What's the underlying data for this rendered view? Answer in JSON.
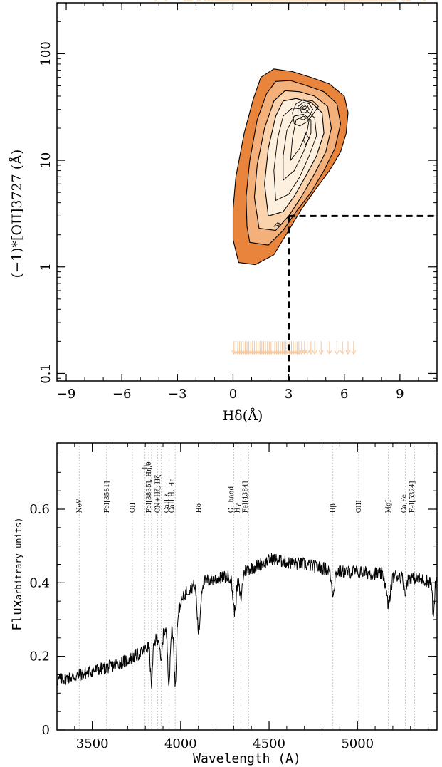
{
  "chart_data": [
    {
      "type": "scatter",
      "title": "",
      "xlabel": "Hδ(Å)",
      "ylabel": "(−1)*[OII]3727 (Å)",
      "xlim": [
        -9.5,
        11
      ],
      "ylim": [
        0.085,
        300
      ],
      "yscale": "log",
      "x_ticks": [
        {
          "value": -9,
          "label": "−9"
        },
        {
          "value": -6,
          "label": "−6"
        },
        {
          "value": -3,
          "label": "−3"
        },
        {
          "value": 0,
          "label": "0"
        },
        {
          "value": 3,
          "label": "3"
        },
        {
          "value": 6,
          "label": "6"
        },
        {
          "value": 9,
          "label": "9"
        }
      ],
      "y_ticks": [
        {
          "value": 0.1,
          "label": "0.1"
        },
        {
          "value": 1,
          "label": "1"
        },
        {
          "value": 10,
          "label": "10"
        },
        {
          "value": 100,
          "label": "100"
        }
      ],
      "colors": {
        "points": "#fde3c4",
        "arrows": "#f6c69a",
        "outer": "#e8843c",
        "mid": "#f4b07a",
        "inner": "#fad3ac",
        "core": "#fef0de",
        "line": "#000000"
      },
      "scatter_center": {
        "x": 3.7,
        "y_log10": 1.05,
        "sx": 2.1,
        "sy": 0.42
      },
      "scatter_count": 1150,
      "contour_levels": [
        {
          "fill": "#e8843c",
          "points": [
            [
              0.3,
              1.1
            ],
            [
              1.2,
              1.05
            ],
            [
              2.2,
              1.3
            ],
            [
              3.0,
              2.2
            ],
            [
              3.7,
              3.5
            ],
            [
              4.5,
              5.5
            ],
            [
              5.2,
              8
            ],
            [
              5.8,
              12
            ],
            [
              6.1,
              18
            ],
            [
              6.2,
              28
            ],
            [
              6.0,
              40
            ],
            [
              5.2,
              52
            ],
            [
              4.2,
              60
            ],
            [
              3.2,
              68
            ],
            [
              2.2,
              72
            ],
            [
              1.5,
              60
            ],
            [
              1.1,
              38
            ],
            [
              0.6,
              18
            ],
            [
              0.15,
              7
            ],
            [
              0.0,
              3.5
            ],
            [
              0.0,
              1.8
            ]
          ]
        },
        {
          "fill": "#f4b07a",
          "points": [
            [
              0.9,
              1.7
            ],
            [
              1.9,
              1.6
            ],
            [
              2.7,
              2.2
            ],
            [
              3.4,
              3.3
            ],
            [
              4.2,
              5
            ],
            [
              4.9,
              8
            ],
            [
              5.5,
              13
            ],
            [
              5.8,
              22
            ],
            [
              5.6,
              34
            ],
            [
              4.9,
              44
            ],
            [
              4.0,
              50
            ],
            [
              3.1,
              56
            ],
            [
              2.3,
              55
            ],
            [
              1.8,
              42
            ],
            [
              1.3,
              24
            ],
            [
              0.9,
              10
            ],
            [
              0.7,
              4.5
            ],
            [
              0.75,
              2.4
            ]
          ]
        },
        {
          "fill": "#fad3ac",
          "points": [
            [
              1.4,
              2.3
            ],
            [
              2.3,
              2.2
            ],
            [
              3.0,
              3.0
            ],
            [
              3.7,
              4.6
            ],
            [
              4.4,
              7.5
            ],
            [
              5.0,
              12
            ],
            [
              5.3,
              20
            ],
            [
              5.1,
              32
            ],
            [
              4.4,
              40
            ],
            [
              3.6,
              44
            ],
            [
              2.8,
              45
            ],
            [
              2.2,
              36
            ],
            [
              1.7,
              20
            ],
            [
              1.3,
              9
            ],
            [
              1.15,
              4.5
            ]
          ]
        },
        {
          "fill": "#fef0de",
          "points": [
            [
              1.9,
              3.0
            ],
            [
              2.7,
              3.3
            ],
            [
              3.3,
              4.6
            ],
            [
              3.9,
              7
            ],
            [
              4.5,
              11
            ],
            [
              4.9,
              18
            ],
            [
              4.8,
              28
            ],
            [
              4.2,
              35
            ],
            [
              3.4,
              38
            ],
            [
              2.7,
              36
            ],
            [
              2.3,
              26
            ],
            [
              1.9,
              13
            ],
            [
              1.7,
              6
            ]
          ]
        }
      ],
      "contour_lines": [
        [
          [
            2.3,
            4.2
          ],
          [
            3.0,
            4.8
          ],
          [
            3.6,
            7
          ],
          [
            4.1,
            11
          ],
          [
            4.5,
            17
          ],
          [
            4.4,
            25
          ],
          [
            3.9,
            30
          ],
          [
            3.2,
            31
          ],
          [
            2.7,
            26
          ],
          [
            2.4,
            16
          ],
          [
            2.2,
            8
          ]
        ],
        [
          [
            2.7,
            6.5
          ],
          [
            3.3,
            8
          ],
          [
            3.8,
            12
          ],
          [
            4.2,
            18
          ],
          [
            4.2,
            24
          ],
          [
            3.8,
            27
          ],
          [
            3.3,
            26
          ],
          [
            2.9,
            19
          ],
          [
            2.7,
            11
          ]
        ],
        [
          [
            3.1,
            10
          ],
          [
            3.6,
            13
          ],
          [
            4.0,
            19
          ],
          [
            4.1,
            24
          ],
          [
            3.8,
            26
          ],
          [
            3.4,
            24
          ],
          [
            3.2,
            16
          ]
        ],
        [
          [
            3.3,
            22
          ],
          [
            3.6,
            21
          ],
          [
            4.0,
            23
          ],
          [
            4.3,
            27
          ],
          [
            4.6,
            32
          ],
          [
            4.3,
            36
          ],
          [
            3.8,
            37
          ],
          [
            3.4,
            34
          ],
          [
            3.2,
            28
          ]
        ],
        [
          [
            3.5,
            25
          ],
          [
            3.8,
            24
          ],
          [
            4.1,
            26
          ],
          [
            4.3,
            30
          ],
          [
            4.1,
            34
          ],
          [
            3.8,
            35
          ],
          [
            3.5,
            32
          ]
        ],
        [
          [
            3.7,
            28
          ],
          [
            3.9,
            28
          ],
          [
            4.1,
            30
          ],
          [
            4.0,
            33
          ],
          [
            3.8,
            33
          ],
          [
            3.6,
            31
          ]
        ],
        [
          [
            3.8,
            30
          ],
          [
            4.0,
            31
          ],
          [
            3.9,
            32.5
          ],
          [
            3.75,
            31.5
          ]
        ],
        [
          [
            2.2,
            2.4
          ],
          [
            2.6,
            2.5
          ],
          [
            2.4,
            2.6
          ]
        ],
        [
          [
            3.9,
            14
          ],
          [
            4.1,
            16
          ],
          [
            3.9,
            18
          ],
          [
            3.8,
            15.5
          ]
        ]
      ],
      "threshold_lines": {
        "x_value": 3,
        "y_value": 3,
        "style": "dashed"
      },
      "upper_limit_arrows": {
        "y": 0.175,
        "x": [
          0.05,
          0.15,
          0.25,
          0.35,
          0.45,
          0.55,
          0.65,
          0.75,
          0.85,
          0.95,
          1.05,
          1.15,
          1.25,
          1.35,
          1.45,
          1.55,
          1.65,
          1.75,
          1.85,
          1.95,
          2.05,
          2.15,
          2.25,
          2.35,
          2.45,
          2.55,
          2.65,
          2.75,
          2.85,
          2.95,
          3.05,
          3.15,
          3.25,
          3.35,
          3.45,
          3.55,
          3.7,
          3.85,
          4.0,
          4.2,
          4.4,
          4.75,
          5.2,
          5.6,
          5.9,
          6.2,
          6.5
        ]
      }
    },
    {
      "type": "line",
      "title": "",
      "xlabel": "Wavelength (A)",
      "ylabel": "Flux",
      "ylabel_small": "(arbitrary units)",
      "xlim": [
        3300,
        5450
      ],
      "ylim": [
        0,
        0.78
      ],
      "x_ticks": [
        {
          "value": 3500,
          "label": "3500"
        },
        {
          "value": 4000,
          "label": "4000"
        },
        {
          "value": 4500,
          "label": "4500"
        },
        {
          "value": 5000,
          "label": "5000"
        }
      ],
      "y_ticks": [
        {
          "value": 0,
          "label": "0"
        },
        {
          "value": 0.2,
          "label": "0.2"
        },
        {
          "value": 0.4,
          "label": "0.4"
        },
        {
          "value": 0.6,
          "label": "0.6"
        }
      ],
      "continuum": [
        [
          3300,
          0.135
        ],
        [
          3400,
          0.145
        ],
        [
          3500,
          0.16
        ],
        [
          3600,
          0.172
        ],
        [
          3700,
          0.19
        ],
        [
          3780,
          0.21
        ],
        [
          3850,
          0.24
        ],
        [
          3900,
          0.265
        ],
        [
          3950,
          0.29
        ],
        [
          3990,
          0.33
        ],
        [
          4030,
          0.375
        ],
        [
          4080,
          0.395
        ],
        [
          4150,
          0.405
        ],
        [
          4250,
          0.415
        ],
        [
          4350,
          0.43
        ],
        [
          4450,
          0.45
        ],
        [
          4520,
          0.465
        ],
        [
          4600,
          0.455
        ],
        [
          4700,
          0.45
        ],
        [
          4800,
          0.44
        ],
        [
          4900,
          0.43
        ],
        [
          5000,
          0.43
        ],
        [
          5100,
          0.425
        ],
        [
          5200,
          0.42
        ],
        [
          5300,
          0.415
        ],
        [
          5400,
          0.405
        ],
        [
          5450,
          0.4
        ]
      ],
      "absorption_features": [
        {
          "center": 3835,
          "depth": 0.11,
          "width": 6
        },
        {
          "center": 3889,
          "depth": 0.08,
          "width": 6
        },
        {
          "center": 3934,
          "depth": 0.15,
          "width": 7
        },
        {
          "center": 3969,
          "depth": 0.18,
          "width": 7
        },
        {
          "center": 4102,
          "depth": 0.13,
          "width": 9
        },
        {
          "center": 4305,
          "depth": 0.1,
          "width": 10
        },
        {
          "center": 4340,
          "depth": 0.07,
          "width": 8
        },
        {
          "center": 4861,
          "depth": 0.06,
          "width": 9
        },
        {
          "center": 5175,
          "depth": 0.08,
          "width": 12
        },
        {
          "center": 5270,
          "depth": 0.04,
          "width": 8
        },
        {
          "center": 5430,
          "depth": 0.1,
          "width": 5
        }
      ],
      "noise_amplitude": 0.018,
      "sample_step": 2,
      "line_marker_wavelengths": [
        3426,
        3581,
        3727,
        3798,
        3820,
        3835,
        3870,
        3889,
        3934,
        3969,
        4102,
        4300,
        4340,
        4384,
        4861,
        5007,
        5175,
        5270,
        5324
      ],
      "line_labels": [
        {
          "wave": 3426,
          "label": "NeV",
          "y": 0.59
        },
        {
          "wave": 3581,
          "label": "FeI[3581]",
          "y": 0.59
        },
        {
          "wave": 3727,
          "label": "OII",
          "y": 0.59
        },
        {
          "wave": 3798,
          "label": "Hι",
          "y": 0.7
        },
        {
          "wave": 3820,
          "label": "FeI[3835], Hη,θ",
          "y": 0.59
        },
        {
          "wave": 3870,
          "label": "CN+Hζ, Hζ",
          "y": 0.59
        },
        {
          "wave": 3920,
          "label": "CaII K",
          "y": 0.59
        },
        {
          "wave": 3950,
          "label": "CaII H, Hε",
          "y": 0.59
        },
        {
          "wave": 4102,
          "label": "Hδ",
          "y": 0.59
        },
        {
          "wave": 4285,
          "label": "G−band",
          "y": 0.59
        },
        {
          "wave": 4320,
          "label": "Hγ",
          "y": 0.59
        },
        {
          "wave": 4365,
          "label": "FeI[4384]",
          "y": 0.59
        },
        {
          "wave": 4861,
          "label": "Hβ",
          "y": 0.59
        },
        {
          "wave": 5007,
          "label": "OIII",
          "y": 0.59
        },
        {
          "wave": 5175,
          "label": "MgI",
          "y": 0.59
        },
        {
          "wave": 5262,
          "label": "Ca,Fe",
          "y": 0.59
        },
        {
          "wave": 5310,
          "label": "FeI[5324]",
          "y": 0.59
        }
      ]
    }
  ]
}
